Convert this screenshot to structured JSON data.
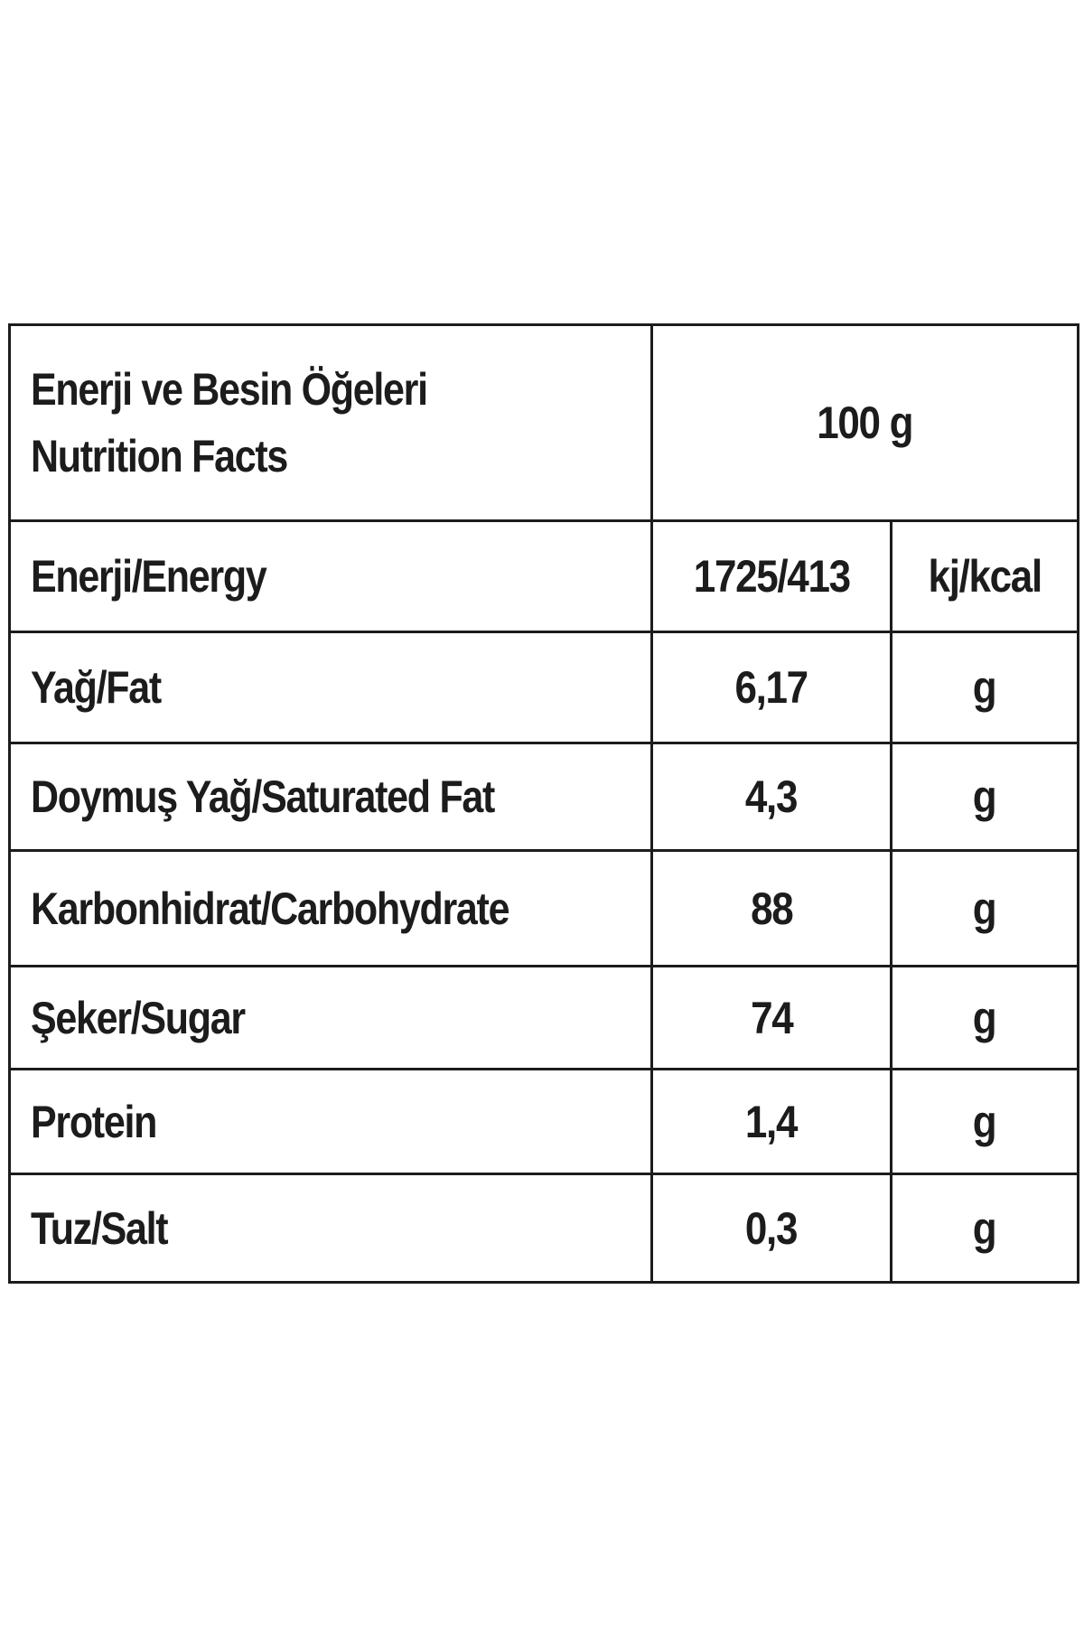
{
  "header": {
    "title_tr": "Enerji ve Besin Öğeleri",
    "title_en": "Nutrition Facts",
    "serving": "100 g"
  },
  "rows": [
    {
      "label": "Enerji/Energy",
      "value": "1725/413",
      "unit": "kj/kcal"
    },
    {
      "label": "Yağ/Fat",
      "value": "6,17",
      "unit": "g"
    },
    {
      "label": "Doymuş Yağ/Saturated Fat",
      "value": "4,3",
      "unit": "g"
    },
    {
      "label": "Karbonhidrat/Carbohydrate",
      "value": "88",
      "unit": "g"
    },
    {
      "label": "Şeker/Sugar",
      "value": "74",
      "unit": "g"
    },
    {
      "label": "Protein",
      "value": "1,4",
      "unit": "g"
    },
    {
      "label": "Tuz/Salt",
      "value": "0,3",
      "unit": "g"
    }
  ],
  "colors": {
    "text": "#1c1c1c",
    "border": "#1c1c1c",
    "background": "#ffffff"
  }
}
